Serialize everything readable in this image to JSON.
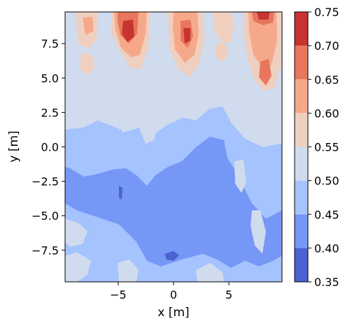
{
  "chart_data": {
    "type": "contourf",
    "xlabel": "x [m]",
    "ylabel": "y [m]",
    "xlim": [
      -9.8,
      9.8
    ],
    "ylim": [
      -9.8,
      9.8
    ],
    "x_ticks": [
      -5,
      0,
      5
    ],
    "x_tick_labels": [
      "−5",
      "0",
      "5"
    ],
    "y_ticks": [
      -7.5,
      -5.0,
      -2.5,
      0.0,
      2.5,
      5.0,
      7.5
    ],
    "y_tick_labels": [
      "−7.5",
      "−5.0",
      "−2.5",
      "0.0",
      "2.5",
      "5.0",
      "7.5"
    ],
    "colormap": "coolwarm",
    "levels": [
      0.35,
      0.4,
      0.45,
      0.5,
      0.55,
      0.6,
      0.65,
      0.7,
      0.75
    ],
    "colorbar_tick_labels": [
      "0.35",
      "0.40",
      "0.45",
      "0.50",
      "0.55",
      "0.60",
      "0.65",
      "0.70",
      "0.75"
    ],
    "level_colors": [
      "#4b62d1",
      "#7597f6",
      "#a5c3fe",
      "#d0dbee",
      "#efcfbf",
      "#f6a98a",
      "#e7765d",
      "#c73330"
    ],
    "grid": false
  }
}
